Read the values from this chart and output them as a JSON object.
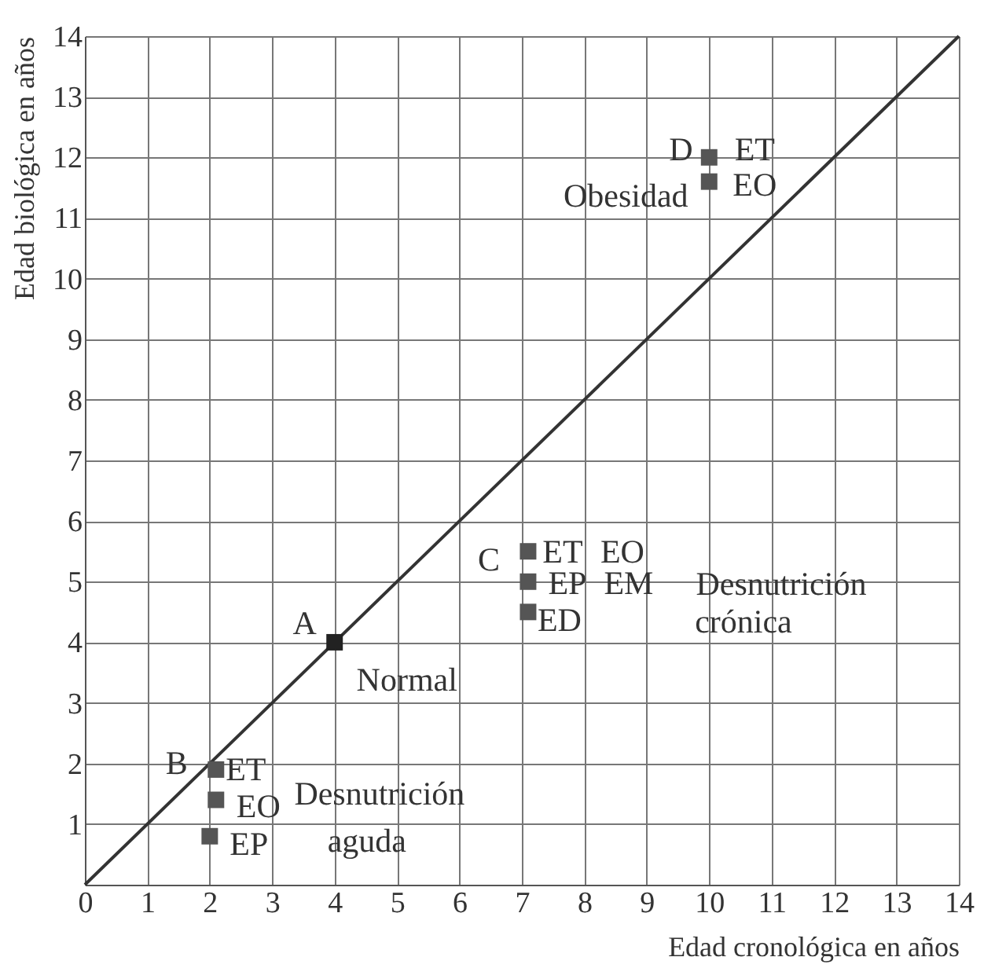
{
  "chart_data": {
    "type": "scatter",
    "xlabel": "Edad cronológica en años",
    "ylabel": "Edad biológica en años",
    "xlim": [
      0,
      14
    ],
    "ylim": [
      0,
      14
    ],
    "xticks": [
      0,
      1,
      2,
      3,
      4,
      5,
      6,
      7,
      8,
      9,
      10,
      11,
      12,
      13,
      14
    ],
    "yticks": [
      {
        "value": 0,
        "label": null
      },
      1,
      2,
      3,
      4,
      5,
      6,
      7,
      8,
      9,
      10,
      11,
      12,
      13,
      14
    ],
    "grid": true,
    "marker": "square",
    "series": [
      {
        "type": "line",
        "marker": "none",
        "color": "#333333",
        "x": [
          0,
          14
        ],
        "values": [
          0,
          14
        ]
      },
      {
        "color": "#222222",
        "x": [
          4
        ],
        "values": [
          4
        ]
      },
      {
        "color": "#555555",
        "x": [
          2.1,
          2.1,
          2.0,
          7.1,
          7.1,
          7.1,
          10.0,
          10.0
        ],
        "values": [
          1.9,
          1.4,
          0.8,
          5.5,
          5.0,
          4.5,
          12.0,
          11.6
        ]
      }
    ],
    "annotations": [
      {
        "text": "A",
        "x": 4,
        "y": 4
      },
      {
        "text": "Normal",
        "x": 4,
        "y": 4
      },
      {
        "text": "B",
        "x": 2.1,
        "y": 1.9
      },
      {
        "text": "ET",
        "x": 2.1,
        "y": 1.9
      },
      {
        "text": "EO",
        "x": 2.1,
        "y": 1.4
      },
      {
        "text": "EP",
        "x": 2.0,
        "y": 0.8
      },
      "Desnutrición",
      "aguda",
      {
        "text": "C",
        "x": 7.1,
        "y": 5.5
      },
      {
        "text": "ET",
        "x": 7.1,
        "y": 5.5
      },
      {
        "text": "EO",
        "x": 7.1,
        "y": 5.5
      },
      {
        "text": "EP",
        "x": 7.1,
        "y": 5.0
      },
      {
        "text": "EM",
        "x": 7.1,
        "y": 5.0
      },
      {
        "text": "ED",
        "x": 7.1,
        "y": 4.5
      },
      "Desnutrición",
      "crónica",
      {
        "text": "D",
        "x": 10,
        "y": 12
      },
      {
        "text": "ET",
        "x": 10,
        "y": 12
      },
      {
        "text": "Obesidad",
        "x": 10,
        "y": 11.6
      },
      {
        "text": "EO",
        "x": 10,
        "y": 11.6
      }
    ]
  }
}
